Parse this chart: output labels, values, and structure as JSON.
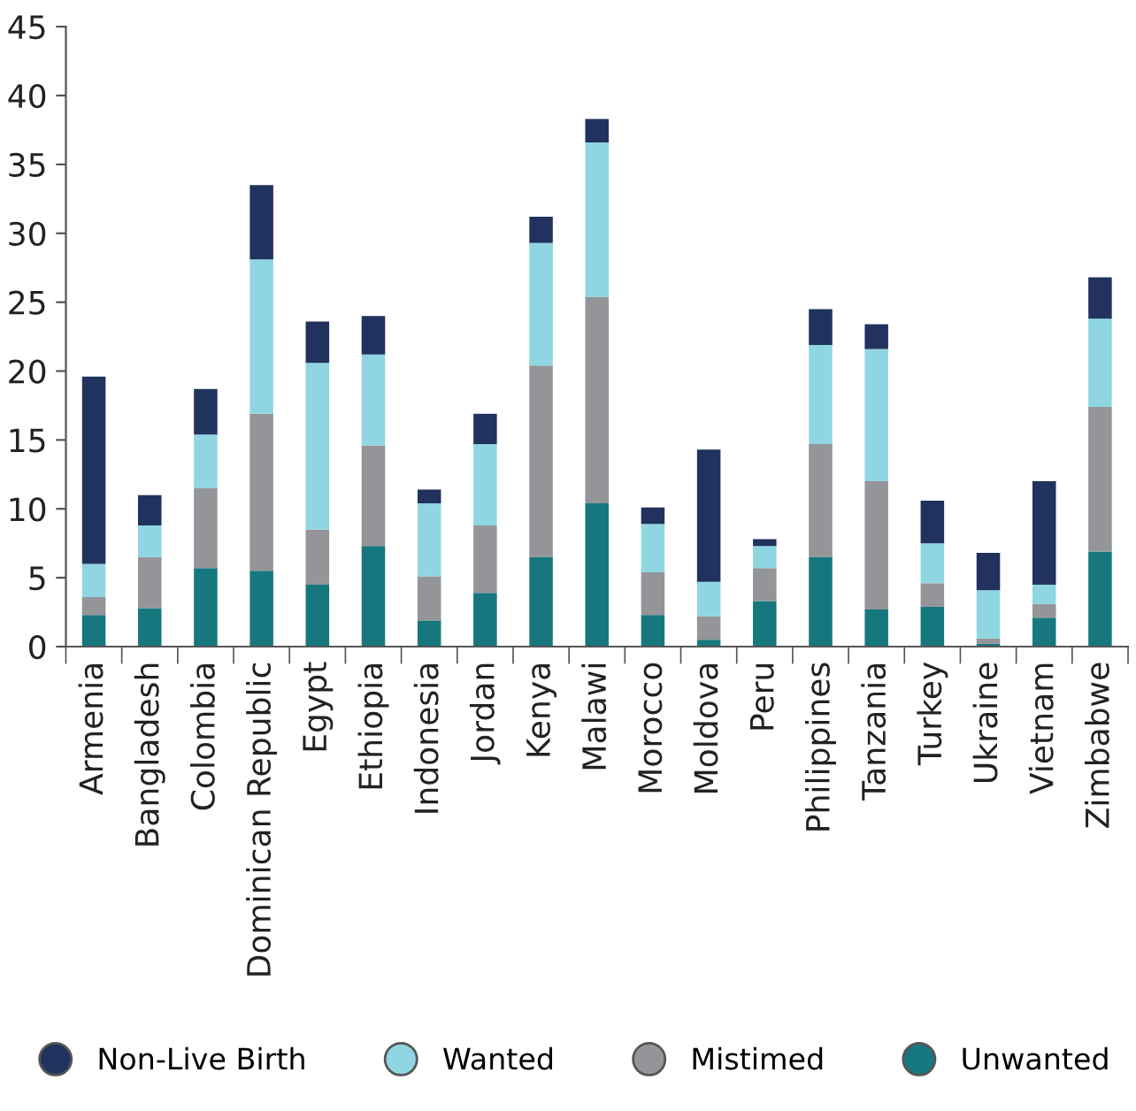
{
  "chart_data": {
    "type": "bar",
    "stacked": true,
    "categories": [
      "Armenia",
      "Bangladesh",
      "Colombia",
      "Dominican Republic",
      "Egypt",
      "Ethiopia",
      "Indonesia",
      "Jordan",
      "Kenya",
      "Malawi",
      "Morocco",
      "Moldova",
      "Peru",
      "Philippines",
      "Tanzania",
      "Turkey",
      "Ukraine",
      "Vietnam",
      "Zimbabwe"
    ],
    "series": [
      {
        "name": "Unwanted",
        "color": "#17777f",
        "values": [
          2.3,
          2.8,
          5.7,
          5.5,
          4.5,
          7.3,
          1.9,
          3.9,
          6.5,
          10.4,
          2.3,
          0.5,
          3.3,
          6.5,
          2.7,
          2.9,
          0.2,
          2.1,
          6.9
        ]
      },
      {
        "name": "Mistimed",
        "color": "#939598",
        "values": [
          1.3,
          3.7,
          5.8,
          11.4,
          4.0,
          7.3,
          3.2,
          4.9,
          13.9,
          15.0,
          3.1,
          1.7,
          2.4,
          8.2,
          9.3,
          1.7,
          0.4,
          1.0,
          10.5
        ]
      },
      {
        "name": "Wanted",
        "color": "#8fd6e2",
        "values": [
          2.4,
          2.3,
          3.9,
          11.2,
          12.1,
          6.6,
          5.3,
          5.9,
          8.9,
          11.2,
          3.5,
          2.5,
          1.6,
          7.2,
          9.6,
          2.9,
          3.5,
          1.4,
          6.4
        ]
      },
      {
        "name": "Non-Live Birth",
        "color": "#21325f",
        "values": [
          13.6,
          2.2,
          3.3,
          5.4,
          3.0,
          2.8,
          1.0,
          2.2,
          1.9,
          1.7,
          1.2,
          9.6,
          0.5,
          2.6,
          1.8,
          3.1,
          2.7,
          7.5,
          3.0
        ]
      }
    ],
    "ylim": [
      0,
      45
    ],
    "yticks": [
      0,
      5,
      10,
      15,
      20,
      25,
      30,
      35,
      40,
      45
    ],
    "grid": false,
    "legend": "bottom"
  }
}
